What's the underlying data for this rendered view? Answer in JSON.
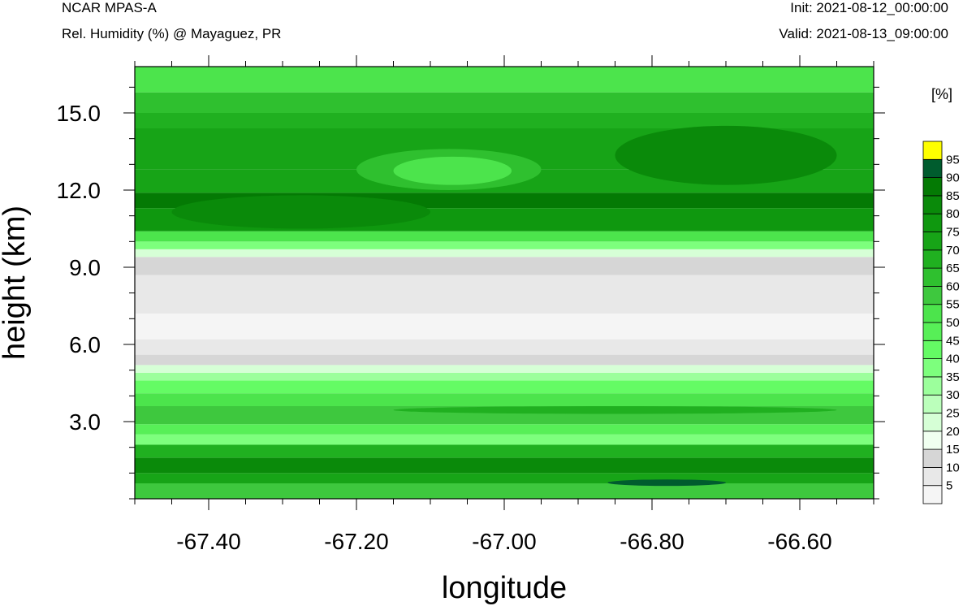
{
  "header": {
    "model": "NCAR MPAS-A",
    "subtitle": "Rel. Humidity (%) @ Mayaguez, PR",
    "init": "Init: 2021-08-12_00:00:00",
    "valid": "Valid: 2021-08-13_09:00:00"
  },
  "chart_data": {
    "type": "heatmap",
    "title": "Rel. Humidity (%) @ Mayaguez, PR",
    "xlabel": "longitude",
    "ylabel": "height (km)",
    "xlim": [
      -67.5,
      -66.5
    ],
    "ylim": [
      0,
      16.8
    ],
    "x_ticks": [
      -67.4,
      -67.2,
      -67.0,
      -66.8,
      -66.6
    ],
    "x_tick_labels": [
      "-67.40",
      "-67.20",
      "-67.00",
      "-66.80",
      "-66.60"
    ],
    "y_ticks": [
      3,
      6,
      9,
      12,
      15
    ],
    "y_tick_labels": [
      "3.0",
      "6.0",
      "9.0",
      "12.0",
      "15.0"
    ],
    "colorbar": {
      "unit": "[%]",
      "levels": [
        5,
        10,
        15,
        20,
        25,
        30,
        35,
        40,
        45,
        50,
        55,
        60,
        65,
        70,
        75,
        80,
        85,
        90,
        95
      ],
      "labels": [
        "5",
        "10",
        "15",
        "20",
        "25",
        "30",
        "35",
        "40",
        "45",
        "50",
        "55",
        "60",
        "65",
        "70",
        "75",
        "80",
        "85",
        "90",
        "95"
      ],
      "colors": [
        "#f5f5f5",
        "#e8e8e8",
        "#d6d6d6",
        "#f0fff0",
        "#d6ffd6",
        "#bbffbb",
        "#9cff9c",
        "#7dff7d",
        "#64fb64",
        "#57ef57",
        "#4ce44c",
        "#3ec83e",
        "#2fc02f",
        "#20b020",
        "#17a417",
        "#0f980f",
        "#0a8a0a",
        "#047a04",
        "#005c2e",
        "#ffff00"
      ]
    },
    "bands": [
      {
        "y0": 0.0,
        "y1": 0.6,
        "value": 57
      },
      {
        "y0": 0.6,
        "y1": 1.0,
        "value": 72
      },
      {
        "y0": 1.0,
        "y1": 1.6,
        "value": 82
      },
      {
        "y0": 1.6,
        "y1": 2.1,
        "value": 66
      },
      {
        "y0": 2.1,
        "y1": 2.5,
        "value": 35
      },
      {
        "y0": 2.5,
        "y1": 2.9,
        "value": 47
      },
      {
        "y0": 2.9,
        "y1": 3.6,
        "value": 56
      },
      {
        "y0": 3.6,
        "y1": 4.1,
        "value": 52
      },
      {
        "y0": 4.1,
        "y1": 4.6,
        "value": 44
      },
      {
        "y0": 4.6,
        "y1": 4.9,
        "value": 32
      },
      {
        "y0": 4.9,
        "y1": 5.2,
        "value": 20
      },
      {
        "y0": 5.2,
        "y1": 5.6,
        "value": 13
      },
      {
        "y0": 5.6,
        "y1": 6.2,
        "value": 9
      },
      {
        "y0": 6.2,
        "y1": 7.2,
        "value": 4
      },
      {
        "y0": 7.2,
        "y1": 8.7,
        "value": 9
      },
      {
        "y0": 8.7,
        "y1": 9.4,
        "value": 14
      },
      {
        "y0": 9.4,
        "y1": 9.7,
        "value": 22
      },
      {
        "y0": 9.7,
        "y1": 10.0,
        "value": 36
      },
      {
        "y0": 10.0,
        "y1": 10.4,
        "value": 52
      },
      {
        "y0": 10.4,
        "y1": 11.3,
        "value": 78
      },
      {
        "y0": 11.3,
        "y1": 11.9,
        "value": 86
      },
      {
        "y0": 11.9,
        "y1": 12.8,
        "value": 73
      },
      {
        "y0": 12.8,
        "y1": 14.4,
        "value": 72
      },
      {
        "y0": 14.4,
        "y1": 15.0,
        "value": 67
      },
      {
        "y0": 15.0,
        "y1": 15.8,
        "value": 61
      },
      {
        "y0": 15.8,
        "y1": 16.8,
        "value": 53
      }
    ],
    "patches": [
      {
        "x0": -67.2,
        "x1": -66.95,
        "y0": 12.0,
        "y1": 13.6,
        "value": 62
      },
      {
        "x0": -67.15,
        "x1": -66.99,
        "y0": 12.2,
        "y1": 13.3,
        "value": 52
      },
      {
        "x0": -66.85,
        "x1": -66.55,
        "y0": 12.2,
        "y1": 14.5,
        "value": 80
      },
      {
        "x0": -67.45,
        "x1": -67.1,
        "y0": 10.5,
        "y1": 11.8,
        "value": 84
      },
      {
        "x0": -66.86,
        "x1": -66.7,
        "y0": 0.5,
        "y1": 0.75,
        "value": 93
      },
      {
        "x0": -67.15,
        "x1": -66.55,
        "y0": 3.3,
        "y1": 3.6,
        "value": 68
      }
    ]
  }
}
